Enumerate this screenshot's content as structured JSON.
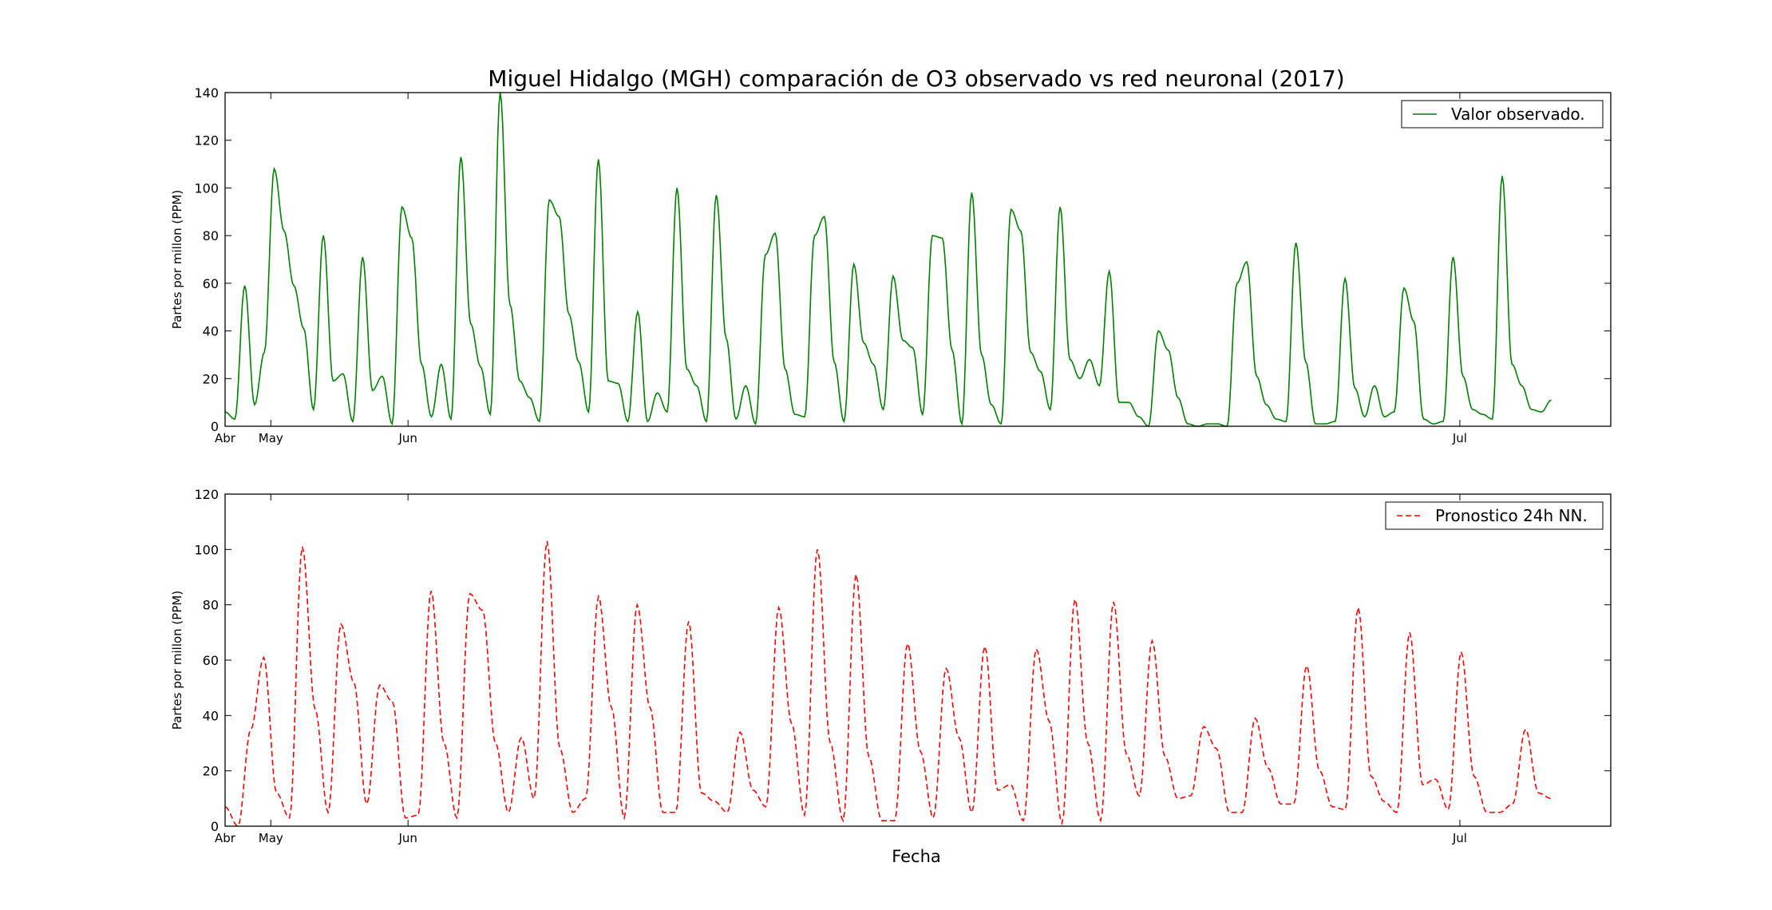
{
  "figure": {
    "title": "Miguel Hidalgo (MGH) comparación de O3 observado vs red neuronal (2017)",
    "xlabel": "Fecha"
  },
  "chart_data": [
    {
      "type": "line",
      "ylabel": "Partes por millon (PPM)",
      "ylim": [
        0,
        140
      ],
      "yticks": [
        0,
        20,
        40,
        60,
        80,
        100,
        120,
        140
      ],
      "xticks": [
        {
          "label": "Abr",
          "x": 0
        },
        {
          "label": "May",
          "x": 1
        },
        {
          "label": "Jun",
          "x": 4
        },
        {
          "label": "Jul",
          "x": 27
        }
      ],
      "xlim": [
        0,
        30.3
      ],
      "grid": false,
      "legend": "top-right",
      "series": [
        {
          "name": "Valor observado.",
          "color": "#008000",
          "style": "solid",
          "x_start": 0,
          "x_end": 29,
          "peaks": [
            6,
            3,
            59,
            9,
            31,
            108,
            82,
            59,
            41,
            7,
            80,
            19,
            22,
            2,
            71,
            15,
            21,
            1,
            92,
            79,
            26,
            4,
            26,
            3,
            113,
            43,
            25,
            5,
            140,
            51,
            19,
            12,
            2,
            95,
            88,
            47,
            27,
            6,
            112,
            19,
            18,
            2,
            48,
            2,
            14,
            6,
            100,
            24,
            17,
            2,
            97,
            37,
            3,
            17,
            1,
            72,
            81,
            24,
            5,
            4,
            80,
            88,
            27,
            2,
            68,
            35,
            26,
            7,
            63,
            36,
            33,
            5,
            80,
            79,
            32,
            1,
            98,
            30,
            9,
            1,
            91,
            82,
            31,
            23,
            7,
            92,
            28,
            20,
            28,
            17,
            65,
            10,
            10,
            4,
            0,
            40,
            32,
            12,
            1,
            0,
            1,
            1,
            0,
            60,
            69,
            21,
            9,
            3,
            2,
            77,
            27,
            1,
            1,
            2,
            62,
            16,
            4,
            17,
            4,
            6,
            58,
            44,
            3,
            1,
            2,
            71,
            21,
            7,
            5,
            3,
            105,
            26,
            17,
            7,
            6,
            11
          ]
        }
      ]
    },
    {
      "type": "line",
      "ylabel": "Partes por millon (PPM)",
      "ylim": [
        0,
        120
      ],
      "yticks": [
        0,
        20,
        40,
        60,
        80,
        100,
        120
      ],
      "xticks": [
        {
          "label": "Abr",
          "x": 0
        },
        {
          "label": "May",
          "x": 1
        },
        {
          "label": "Jun",
          "x": 4
        },
        {
          "label": "Jul",
          "x": 27
        }
      ],
      "xlim": [
        0,
        30.3
      ],
      "grid": false,
      "legend": "top-right",
      "series": [
        {
          "name": "Pronostico 24h NN.",
          "color": "#ff0000",
          "style": "dashed",
          "x_start": 0,
          "x_end": 29,
          "peaks": [
            7,
            0,
            35,
            61,
            12,
            3,
            101,
            42,
            5,
            73,
            52,
            8,
            51,
            45,
            3,
            4,
            85,
            30,
            3,
            84,
            78,
            30,
            5,
            32,
            10,
            103,
            28,
            5,
            10,
            83,
            43,
            3,
            80,
            43,
            5,
            5,
            74,
            12,
            9,
            5,
            34,
            13,
            7,
            79,
            37,
            4,
            100,
            30,
            2,
            91,
            25,
            2,
            2,
            66,
            27,
            3,
            57,
            32,
            5,
            65,
            13,
            15,
            2,
            64,
            38,
            1,
            82,
            30,
            2,
            81,
            26,
            11,
            67,
            25,
            10,
            11,
            36,
            28,
            5,
            5,
            39,
            21,
            8,
            8,
            58,
            20,
            7,
            6,
            79,
            18,
            9,
            5,
            70,
            15,
            17,
            6,
            63,
            18,
            5,
            5,
            8,
            35,
            12,
            10
          ]
        }
      ]
    }
  ]
}
